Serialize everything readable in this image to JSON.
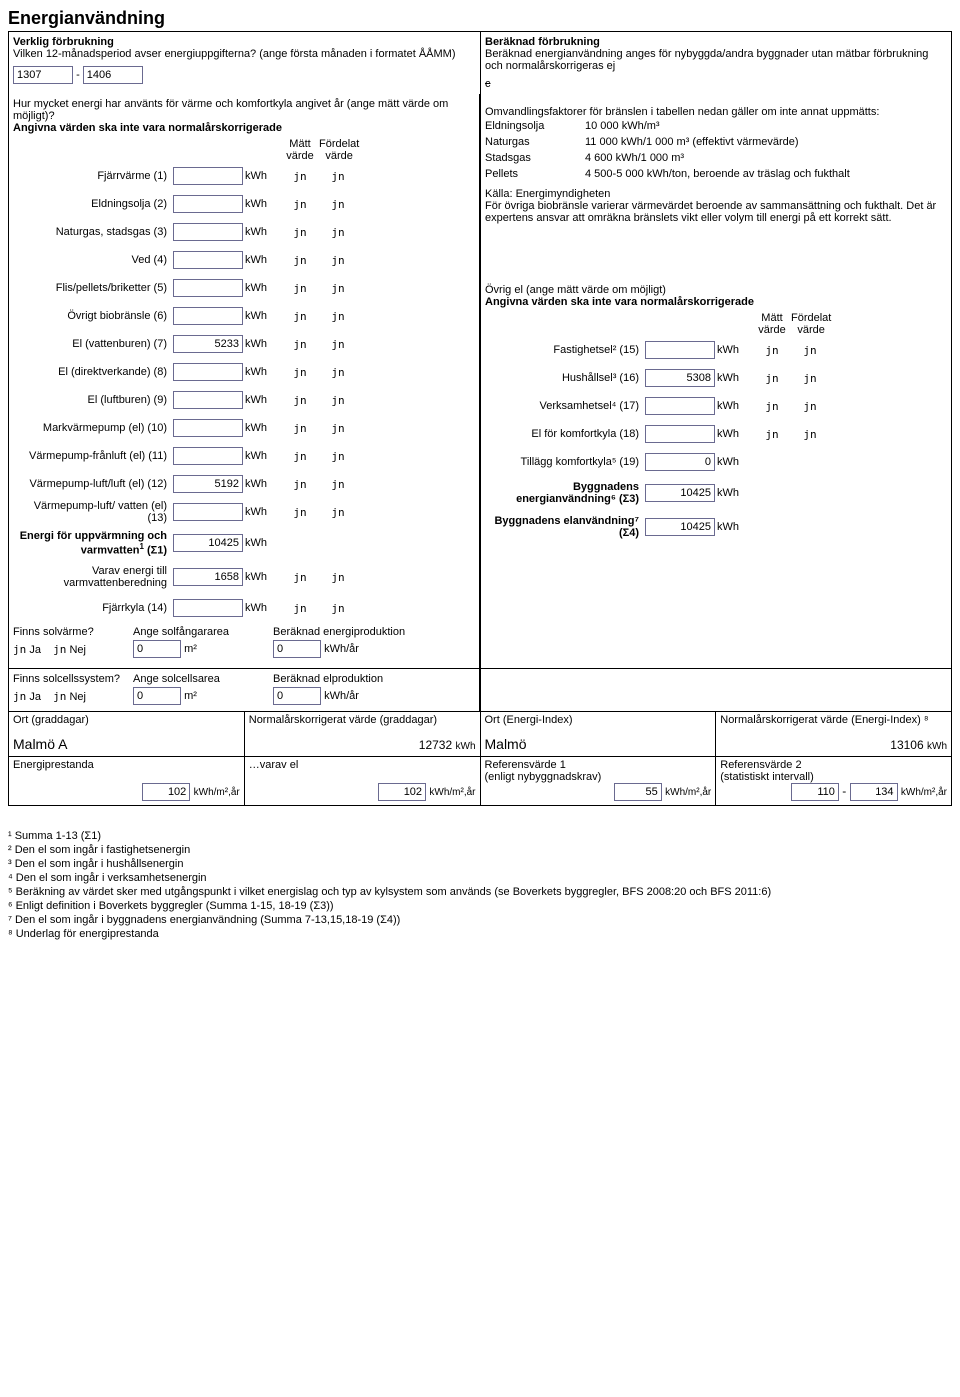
{
  "title": "Energianvändning",
  "left_header": {
    "sub1": "Verklig förbrukning",
    "sub2": "Vilken 12-månadsperiod avser energiuppgifterna? (ange första månaden i formatet ÅÅMM)",
    "period_from": "1307",
    "period_sep": "-",
    "period_to": "1406"
  },
  "right_header": {
    "sub1": "Beräknad förbrukning",
    "sub2": "Beräknad energianvändning anges för nybyggda/andra byggnader utan mätbar förbrukning och normalårskorrigeras ej",
    "strike": "c"
  },
  "left_note": {
    "l1": "Hur mycket energi har använts för värme och komfortkyla angivet år (ange mätt värde om möjligt)?",
    "l2": "Angivna värden ska inte vara normalårskorrigerade"
  },
  "col_headers": {
    "matt": "Mätt\nvärde",
    "fordelat": "Fördelat\nvärde"
  },
  "energy_rows": [
    {
      "label": "Fjärrvärme (1)",
      "value": "",
      "unit": "kWh",
      "m": "jn",
      "f": "jn"
    },
    {
      "label": "Eldningsolja (2)",
      "value": "",
      "unit": "kWh",
      "m": "jn",
      "f": "jn"
    },
    {
      "label": "Naturgas, stadsgas (3)",
      "value": "",
      "unit": "kWh",
      "m": "jn",
      "f": "jn"
    },
    {
      "label": "Ved (4)",
      "value": "",
      "unit": "kWh",
      "m": "jn",
      "f": "jn"
    },
    {
      "label": "Flis/pellets/briketter (5)",
      "value": "",
      "unit": "kWh",
      "m": "jn",
      "f": "jn"
    },
    {
      "label": "Övrigt biobränsle (6)",
      "value": "",
      "unit": "kWh",
      "m": "jn",
      "f": "jn"
    },
    {
      "label": "El (vattenburen) (7)",
      "value": "5233",
      "unit": "kWh",
      "m": "jn",
      "f": "jn"
    },
    {
      "label": "El (direktverkande) (8)",
      "value": "",
      "unit": "kWh",
      "m": "jn",
      "f": "jn"
    },
    {
      "label": "El (luftburen) (9)",
      "value": "",
      "unit": "kWh",
      "m": "jn",
      "f": "jn"
    },
    {
      "label": "Markvärmepump (el) (10)",
      "value": "",
      "unit": "kWh",
      "m": "jn",
      "f": "jn"
    },
    {
      "label": "Värmepump-frånluft (el) (11)",
      "value": "",
      "unit": "kWh",
      "m": "jn",
      "f": "jn"
    },
    {
      "label": "Värmepump-luft/luft (el) (12)",
      "value": "5192",
      "unit": "kWh",
      "m": "jn",
      "f": "jn"
    },
    {
      "label": "Värmepump-luft/ vatten (el) (13)",
      "value": "",
      "unit": "kWh",
      "m": "jn",
      "f": "jn"
    }
  ],
  "sum_row": {
    "label_html": "Energi för uppvärmning och varmvatten¹ (Σ1)",
    "value": "10425",
    "unit": "kWh"
  },
  "varav_row": {
    "label": "Varav energi till varmvattenberedning",
    "value": "1658",
    "unit": "kWh",
    "m": "jn",
    "f": "jn"
  },
  "fjarrkyla_row": {
    "label": "Fjärrkyla (14)",
    "value": "",
    "unit": "kWh",
    "m": "jn",
    "f": "jn"
  },
  "conv": {
    "intro": "Omvandlingsfaktorer för bränslen i tabellen nedan gäller om inte annat uppmätts:",
    "rows": [
      {
        "k": "Eldningsolja",
        "v": "10 000 kWh/m³"
      },
      {
        "k": "Naturgas",
        "v": "11 000 kWh/1 000 m³ (effektivt värmevärde)"
      },
      {
        "k": "Stadsgas",
        "v": "4 600 kWh/1 000 m³"
      },
      {
        "k": "Pellets",
        "v": "4 500-5 000 kWh/ton, beroende av träslag och fukthalt"
      }
    ],
    "source": "Källa: Energimyndigheten",
    "note": "För övriga biobränsle varierar värmevärdet beroende av sammansättning och fukthalt. Det är expertens ansvar att omräkna bränslets vikt eller volym till energi på ett korrekt sätt."
  },
  "ovrig_el": {
    "title": "Övrig el (ange mätt värde om möjligt)",
    "subtitle": "Angivna värden ska inte vara normalårskorrigerade",
    "rows": [
      {
        "label": "Fastighetsel² (15)",
        "value": "",
        "unit": "kWh",
        "m": "jn",
        "f": "jn"
      },
      {
        "label": "Hushållsel³ (16)",
        "value": "5308",
        "unit": "kWh",
        "m": "jn",
        "f": "jn"
      },
      {
        "label": "Verksamhetsel⁴ (17)",
        "value": "",
        "unit": "kWh",
        "m": "jn",
        "f": "jn"
      },
      {
        "label": "El för komfortkyla (18)",
        "value": "",
        "unit": "kWh",
        "m": "jn",
        "f": "jn"
      }
    ],
    "tillagg": {
      "label": "Tillägg komfortkyla⁵ (19)",
      "value": "0",
      "unit": "kWh"
    },
    "bygg_energi": {
      "label": "Byggnadens energianvändning⁶ (Σ3)",
      "value": "10425",
      "unit": "kWh"
    },
    "bygg_el": {
      "label": "Byggnadens elanvändning⁷ (Σ4)",
      "value": "10425",
      "unit": "kWh"
    }
  },
  "solar": {
    "q1": "Finns solvärme?",
    "area_label1": "Ange solfångararea",
    "prod_label1": "Beräknad energiproduktion",
    "area1": "0",
    "area_unit": "m²",
    "prod1": "0",
    "prod_unit": "kWh/år",
    "q2": "Finns solcellssystem?",
    "area_label2": "Ange solcellsarea",
    "prod_label2": "Beräknad elproduktion",
    "area2": "0",
    "prod2": "0",
    "ja": "Ja",
    "nej": "Nej",
    "radio": "jn"
  },
  "ort": {
    "c1_label": "Ort (graddagar)",
    "c1_val": "Malmö A",
    "c2_label": "Normalårskorrigerat värde (graddagar)",
    "c2_val": "12732",
    "c2_unit": "kWh",
    "c3_label": "Ort (Energi-Index)",
    "c3_val": "Malmö",
    "c4_label": "Normalårskorrigerat värde (Energi-Index) ⁸",
    "c4_val": "13106",
    "c4_unit": "kWh"
  },
  "perf": {
    "c1_label": "Energiprestanda",
    "c1_val": "102",
    "unit": "kWh/m²,år",
    "c2_label": "…varav el",
    "c2_val": "102",
    "c3_label": "Referensvärde 1\n(enligt nybyggnadskrav)",
    "c3_val": "55",
    "c4_label": "Referensvärde 2\n(statistiskt intervall)",
    "c4_val_a": "110",
    "c4_sep": "-",
    "c4_val_b": "134"
  },
  "footnotes": [
    "¹ Summa 1-13 (Σ1)",
    "² Den el som ingår i fastighetsenergin",
    "³ Den el som ingår i hushållsenergin",
    "⁴ Den el som ingår i verksamhetsenergin",
    "⁵ Beräkning av värdet sker med utgångspunkt i vilket energislag och typ av kylsystem som används (se Boverkets byggregler, BFS 2008:20 och BFS 2011:6)",
    "⁶ Enligt definition i Boverkets byggregler (Summa 1-15, 18-19 (Σ3))",
    "⁷ Den el som ingår i byggnadens energianvändning (Summa 7-13,15,18-19 (Σ4))",
    "⁸ Underlag för energiprestanda"
  ],
  "colors": {
    "border": "#000000",
    "input_border": "#6a6a90",
    "bg": "#ffffff"
  }
}
